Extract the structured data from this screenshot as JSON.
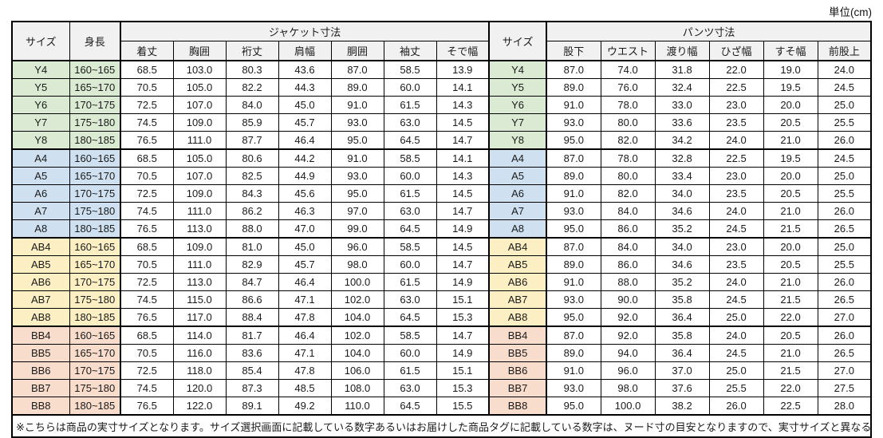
{
  "unit_label": "単位(cm)",
  "colors": {
    "header_bg": "#f1f1f1",
    "border": "#000000",
    "group_y": "#dbead3",
    "group_a": "#cfe1f1",
    "group_ab": "#fcefc4",
    "group_bb": "#f8dccc"
  },
  "table": {
    "size_col_header": "サイズ",
    "height_col_header": "身長",
    "jacket_section_header": "ジャケット寸法",
    "size_col_header_right": "サイズ",
    "pants_section_header": "パンツ寸法",
    "jacket_columns": [
      "着丈",
      "胸囲",
      "裄丈",
      "肩幅",
      "胴囲",
      "袖丈",
      "そで幅"
    ],
    "pants_columns": [
      "股下",
      "ウエスト",
      "渡り幅",
      "ひざ幅",
      "すそ幅",
      "前股上"
    ],
    "groups": [
      {
        "name": "Y",
        "color": "#dbead3",
        "rows": [
          {
            "size": "Y4",
            "height": "160~165",
            "jacket": [
              "68.5",
              "103.0",
              "80.3",
              "43.6",
              "87.0",
              "58.5",
              "13.9"
            ],
            "pants": [
              "87.0",
              "74.0",
              "31.8",
              "22.0",
              "19.0",
              "24.0"
            ]
          },
          {
            "size": "Y5",
            "height": "165~170",
            "jacket": [
              "70.5",
              "105.0",
              "82.2",
              "44.3",
              "89.0",
              "60.0",
              "14.1"
            ],
            "pants": [
              "89.0",
              "76.0",
              "32.4",
              "22.5",
              "19.5",
              "24.5"
            ]
          },
          {
            "size": "Y6",
            "height": "170~175",
            "jacket": [
              "72.5",
              "107.0",
              "84.0",
              "45.0",
              "91.0",
              "61.5",
              "14.3"
            ],
            "pants": [
              "91.0",
              "78.0",
              "33.0",
              "23.0",
              "20.0",
              "25.0"
            ]
          },
          {
            "size": "Y7",
            "height": "175~180",
            "jacket": [
              "74.5",
              "109.0",
              "85.9",
              "45.7",
              "93.0",
              "63.0",
              "14.5"
            ],
            "pants": [
              "93.0",
              "80.0",
              "33.6",
              "23.5",
              "20.5",
              "25.5"
            ]
          },
          {
            "size": "Y8",
            "height": "180~185",
            "jacket": [
              "76.5",
              "111.0",
              "87.7",
              "46.4",
              "95.0",
              "64.5",
              "14.7"
            ],
            "pants": [
              "95.0",
              "82.0",
              "34.2",
              "24.0",
              "21.0",
              "26.0"
            ]
          }
        ]
      },
      {
        "name": "A",
        "color": "#cfe1f1",
        "rows": [
          {
            "size": "A4",
            "height": "160~165",
            "jacket": [
              "68.5",
              "105.0",
              "80.6",
              "44.2",
              "91.0",
              "58.5",
              "14.1"
            ],
            "pants": [
              "87.0",
              "78.0",
              "32.8",
              "22.5",
              "19.5",
              "24.5"
            ]
          },
          {
            "size": "A5",
            "height": "165~170",
            "jacket": [
              "70.5",
              "107.0",
              "82.5",
              "44.9",
              "93.0",
              "60.0",
              "14.3"
            ],
            "pants": [
              "89.0",
              "80.0",
              "33.4",
              "23.0",
              "20.0",
              "25.0"
            ]
          },
          {
            "size": "A6",
            "height": "170~175",
            "jacket": [
              "72.5",
              "109.0",
              "84.3",
              "45.6",
              "95.0",
              "61.5",
              "14.5"
            ],
            "pants": [
              "91.0",
              "82.0",
              "34.0",
              "23.5",
              "20.5",
              "25.5"
            ]
          },
          {
            "size": "A7",
            "height": "175~180",
            "jacket": [
              "74.5",
              "111.0",
              "86.2",
              "46.3",
              "97.0",
              "63.0",
              "14.7"
            ],
            "pants": [
              "93.0",
              "84.0",
              "34.6",
              "24.0",
              "21.0",
              "26.0"
            ]
          },
          {
            "size": "A8",
            "height": "180~185",
            "jacket": [
              "76.5",
              "113.0",
              "88.0",
              "47.0",
              "99.0",
              "64.5",
              "14.9"
            ],
            "pants": [
              "95.0",
              "86.0",
              "35.2",
              "24.5",
              "21.5",
              "26.5"
            ]
          }
        ]
      },
      {
        "name": "AB",
        "color": "#fcefc4",
        "rows": [
          {
            "size": "AB4",
            "height": "160~165",
            "jacket": [
              "68.5",
              "109.0",
              "81.0",
              "45.0",
              "96.0",
              "58.5",
              "14.5"
            ],
            "pants": [
              "87.0",
              "84.0",
              "34.0",
              "23.0",
              "20.0",
              "25.0"
            ]
          },
          {
            "size": "AB5",
            "height": "165~170",
            "jacket": [
              "70.5",
              "111.0",
              "82.9",
              "45.7",
              "98.0",
              "60.0",
              "14.7"
            ],
            "pants": [
              "89.0",
              "86.0",
              "34.6",
              "23.5",
              "20.5",
              "25.5"
            ]
          },
          {
            "size": "AB6",
            "height": "170~175",
            "jacket": [
              "72.5",
              "113.0",
              "84.7",
              "46.4",
              "100.0",
              "61.5",
              "14.9"
            ],
            "pants": [
              "91.0",
              "88.0",
              "35.2",
              "24.0",
              "21.0",
              "26.0"
            ]
          },
          {
            "size": "AB7",
            "height": "175~180",
            "jacket": [
              "74.5",
              "115.0",
              "86.6",
              "47.1",
              "102.0",
              "63.0",
              "15.1"
            ],
            "pants": [
              "93.0",
              "90.0",
              "35.8",
              "24.5",
              "21.5",
              "26.5"
            ]
          },
          {
            "size": "AB8",
            "height": "180~185",
            "jacket": [
              "76.5",
              "117.0",
              "88.4",
              "47.8",
              "104.0",
              "64.5",
              "15.3"
            ],
            "pants": [
              "95.0",
              "92.0",
              "36.4",
              "25.0",
              "22.0",
              "27.0"
            ]
          }
        ]
      },
      {
        "name": "BB",
        "color": "#f8dccc",
        "rows": [
          {
            "size": "BB4",
            "height": "160~165",
            "jacket": [
              "68.5",
              "114.0",
              "81.7",
              "46.4",
              "102.0",
              "58.5",
              "14.7"
            ],
            "pants": [
              "87.0",
              "92.0",
              "35.8",
              "24.0",
              "20.5",
              "26.0"
            ]
          },
          {
            "size": "BB5",
            "height": "165~170",
            "jacket": [
              "70.5",
              "116.0",
              "83.6",
              "47.1",
              "104.0",
              "60.0",
              "14.9"
            ],
            "pants": [
              "89.0",
              "94.0",
              "36.4",
              "24.5",
              "21.0",
              "26.5"
            ]
          },
          {
            "size": "BB6",
            "height": "170~175",
            "jacket": [
              "72.5",
              "118.0",
              "85.4",
              "47.8",
              "106.0",
              "61.5",
              "15.1"
            ],
            "pants": [
              "91.0",
              "96.0",
              "37.0",
              "25.0",
              "21.5",
              "27.0"
            ]
          },
          {
            "size": "BB7",
            "height": "175~180",
            "jacket": [
              "74.5",
              "120.0",
              "87.3",
              "48.5",
              "108.0",
              "63.0",
              "15.3"
            ],
            "pants": [
              "93.0",
              "98.0",
              "37.6",
              "25.5",
              "22.0",
              "27.5"
            ]
          },
          {
            "size": "BB8",
            "height": "180~185",
            "jacket": [
              "76.5",
              "122.0",
              "89.1",
              "49.2",
              "110.0",
              "64.5",
              "15.5"
            ],
            "pants": [
              "95.0",
              "100.0",
              "38.2",
              "26.0",
              "22.5",
              "28.0"
            ]
          }
        ]
      }
    ]
  },
  "footnote": "※こちらは商品の実寸サイズとなります。サイズ選択画面に記載している数字あるいはお届けした商品タグに記載している数字は、ヌード寸の目安となりますので、実寸サイズと異なる場合がございます。"
}
